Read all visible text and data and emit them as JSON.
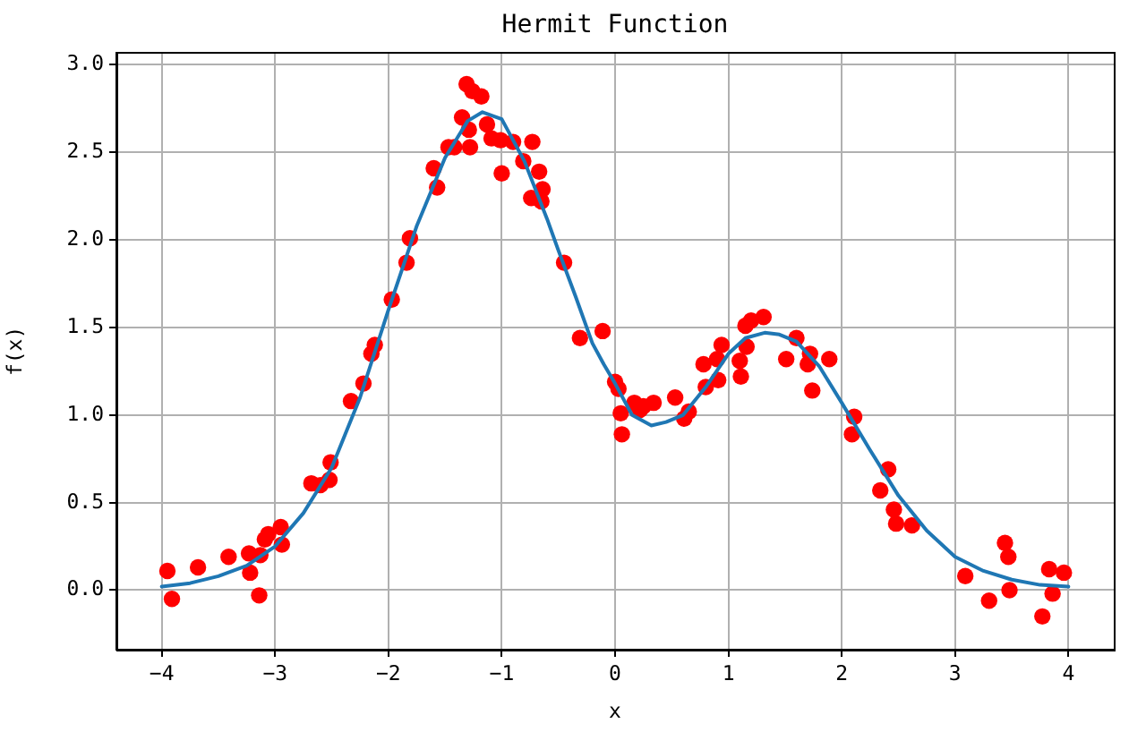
{
  "chart_data": {
    "type": "scatter",
    "title": "Hermit Function",
    "xlabel": "x",
    "ylabel": "f(x)",
    "xlim": [
      -4.4,
      4.4
    ],
    "ylim": [
      -0.34,
      3.07
    ],
    "xticks": [
      {
        "value": -4,
        "label": "−4"
      },
      {
        "value": -3,
        "label": "−3"
      },
      {
        "value": -2,
        "label": "−2"
      },
      {
        "value": -1,
        "label": "−1"
      },
      0,
      1,
      2,
      3,
      4
    ],
    "yticks": [
      {
        "value": 0,
        "label": "0.0"
      },
      0.5,
      {
        "value": 1,
        "label": "1.0"
      },
      1.5,
      {
        "value": 2,
        "label": "2.0"
      },
      2.5,
      {
        "value": 3,
        "label": "3.0"
      }
    ],
    "grid": true,
    "series": [
      {
        "type": "scatter",
        "color": "#ff0000",
        "marker": "circle",
        "x": [
          -3.95,
          -3.91,
          -3.68,
          -3.41,
          -3.23,
          -3.22,
          -3.13,
          -3.14,
          -3.09,
          -3.06,
          -2.95,
          -2.94,
          -2.68,
          -2.6,
          -2.52,
          -2.51,
          -2.33,
          -2.22,
          -2.15,
          -2.12,
          -1.97,
          -1.84,
          -1.81,
          -1.6,
          -1.57,
          -1.47,
          -1.42,
          -1.35,
          -1.31,
          -1.29,
          -1.28,
          -1.26,
          -1.18,
          -1.13,
          -1.09,
          -1.01,
          -1.0,
          -0.9,
          -0.81,
          -0.74,
          -0.73,
          -0.67,
          -0.65,
          -0.64,
          -0.45,
          -0.31,
          -0.11,
          0.0,
          0.03,
          0.05,
          0.06,
          0.17,
          0.22,
          0.25,
          0.34,
          0.53,
          0.61,
          0.65,
          0.78,
          0.8,
          0.9,
          0.91,
          0.94,
          1.1,
          1.11,
          1.16,
          1.15,
          1.2,
          1.31,
          1.51,
          1.6,
          1.7,
          1.72,
          1.74,
          1.89,
          2.09,
          2.11,
          2.34,
          2.41,
          2.46,
          2.48,
          2.62,
          3.09,
          3.3,
          3.44,
          3.47,
          3.48,
          3.77,
          3.83,
          3.86,
          3.96
        ],
        "values": [
          0.11,
          -0.05,
          0.13,
          0.19,
          0.21,
          0.1,
          0.2,
          -0.03,
          0.29,
          0.32,
          0.36,
          0.26,
          0.61,
          0.6,
          0.63,
          0.73,
          1.08,
          1.18,
          1.35,
          1.4,
          1.66,
          1.87,
          2.01,
          2.41,
          2.3,
          2.53,
          2.53,
          2.7,
          2.89,
          2.63,
          2.53,
          2.85,
          2.82,
          2.66,
          2.58,
          2.57,
          2.38,
          2.56,
          2.45,
          2.24,
          2.56,
          2.39,
          2.22,
          2.29,
          1.87,
          1.44,
          1.48,
          1.19,
          1.15,
          1.01,
          0.89,
          1.07,
          1.03,
          1.05,
          1.07,
          1.1,
          0.98,
          1.02,
          1.29,
          1.16,
          1.32,
          1.2,
          1.4,
          1.31,
          1.22,
          1.39,
          1.51,
          1.54,
          1.56,
          1.32,
          1.44,
          1.29,
          1.35,
          1.14,
          1.32,
          0.89,
          0.99,
          0.57,
          0.69,
          0.46,
          0.38,
          0.37,
          0.08,
          -0.06,
          0.27,
          0.19,
          0.0,
          -0.15,
          0.12,
          -0.02,
          0.1
        ]
      },
      {
        "type": "line",
        "color": "#1f77b4",
        "marker": "none",
        "line_style": "solid",
        "x": [
          -4,
          -3.75,
          -3.5,
          -3.25,
          -3,
          -2.75,
          -2.5,
          -2.25,
          -2,
          -1.75,
          -1.5,
          -1.3,
          -1.17,
          -1,
          -0.8,
          -0.6,
          -0.5,
          -0.35,
          -0.2,
          -0.1,
          0,
          0.15,
          0.32,
          0.45,
          0.6,
          0.8,
          1,
          1.15,
          1.32,
          1.45,
          1.6,
          1.8,
          2,
          2.25,
          2.5,
          2.75,
          3,
          3.25,
          3.5,
          3.75,
          4
        ],
        "values": [
          0.02,
          0.04,
          0.08,
          0.14,
          0.25,
          0.44,
          0.7,
          1.1,
          1.6,
          2.08,
          2.47,
          2.68,
          2.73,
          2.69,
          2.45,
          2.12,
          1.94,
          1.68,
          1.41,
          1.29,
          1.18,
          1.0,
          0.94,
          0.96,
          1.0,
          1.16,
          1.35,
          1.44,
          1.47,
          1.46,
          1.42,
          1.28,
          1.07,
          0.8,
          0.54,
          0.34,
          0.19,
          0.11,
          0.06,
          0.03,
          0.02
        ]
      }
    ]
  }
}
